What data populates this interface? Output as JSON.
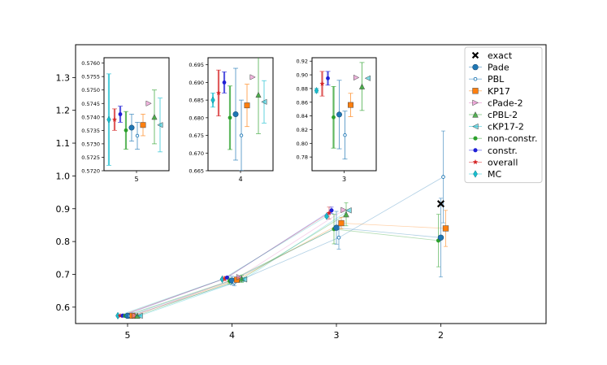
{
  "chart_data": {
    "type": "scatter",
    "title": "",
    "xlabel": "",
    "ylabel": "",
    "x_tick_labels": [
      "5",
      "4",
      "3",
      "2"
    ],
    "ylim": [
      0.55,
      1.4
    ],
    "y_ticks": [
      0.6,
      0.7,
      0.8,
      0.9,
      1.0,
      1.1,
      1.2,
      1.3
    ],
    "y_tick_labels": [
      "0.6",
      "0.7",
      "0.8",
      "0.9",
      "1.0",
      "1.1",
      "1.2",
      "1.3"
    ],
    "legend": {
      "placement": "upper-right",
      "entries": [
        {
          "label": "exact",
          "marker": "x",
          "color": "#000000"
        },
        {
          "label": "Pade",
          "marker": "circle",
          "color": "#1f77b4"
        },
        {
          "label": "PBL",
          "marker": "small-circle",
          "color": "#1f77b4"
        },
        {
          "label": "KP17",
          "marker": "square",
          "color": "#ff7f0e"
        },
        {
          "label": "cPade-2",
          "marker": "triangle-right",
          "color": "#e377c2"
        },
        {
          "label": "cPBL-2",
          "marker": "triangle-up",
          "color": "#2ca02c"
        },
        {
          "label": "cKP17-2",
          "marker": "triangle-left",
          "color": "#17becf"
        },
        {
          "label": "non-constr.",
          "marker": "dot",
          "color": "#2ca02c"
        },
        {
          "label": "constr.",
          "marker": "dot",
          "color": "#1f1fd6"
        },
        {
          "label": "overall",
          "marker": "star",
          "color": "#d62728"
        },
        {
          "label": "MC",
          "marker": "diamond",
          "color": "#17becf"
        }
      ]
    },
    "series": [
      {
        "name": "exact",
        "points": [
          {
            "x": "2",
            "y": 0.915
          }
        ]
      },
      {
        "name": "Pade",
        "points": [
          {
            "x": "5",
            "y": 0.5736,
            "err": 0.0005
          },
          {
            "x": "4",
            "y": 0.681,
            "err": 0.013
          },
          {
            "x": "3",
            "y": 0.842,
            "err": 0.05
          },
          {
            "x": "2",
            "y": 0.812,
            "err": 0.12
          }
        ]
      },
      {
        "name": "PBL",
        "points": [
          {
            "x": "5",
            "y": 0.5733,
            "err": 0.0005
          },
          {
            "x": "4",
            "y": 0.675,
            "err": 0.01
          },
          {
            "x": "3",
            "y": 0.812,
            "err": 0.035
          },
          {
            "x": "2",
            "y": 0.997,
            "err": 0.14
          }
        ]
      },
      {
        "name": "KP17",
        "points": [
          {
            "x": "5",
            "y": 0.5737,
            "err": 0.0004
          },
          {
            "x": "4",
            "y": 0.6835,
            "err": 0.006
          },
          {
            "x": "3",
            "y": 0.856,
            "err": 0.017
          },
          {
            "x": "2",
            "y": 0.84,
            "err": 0.055
          }
        ]
      },
      {
        "name": "cPade-2",
        "points": [
          {
            "x": "5",
            "y": 0.5745
          },
          {
            "x": "4",
            "y": 0.6915
          },
          {
            "x": "3",
            "y": 0.896
          }
        ]
      },
      {
        "name": "cPBL-2",
        "points": [
          {
            "x": "5",
            "y": 0.574,
            "err": 0.001
          },
          {
            "x": "4",
            "y": 0.6865,
            "err": 0.011
          },
          {
            "x": "3",
            "y": 0.883,
            "err": 0.035
          }
        ]
      },
      {
        "name": "cKP17-2",
        "points": [
          {
            "x": "5",
            "y": 0.5737,
            "err": 0.001
          },
          {
            "x": "4",
            "y": 0.6845,
            "err": 0.006
          },
          {
            "x": "3",
            "y": 0.895
          }
        ]
      },
      {
        "name": "non-constr.",
        "points": [
          {
            "x": "5",
            "y": 0.5735,
            "err": 0.0007
          },
          {
            "x": "4",
            "y": 0.68,
            "err": 0.009
          },
          {
            "x": "3",
            "y": 0.838,
            "err": 0.045
          },
          {
            "x": "2",
            "y": 0.803,
            "err": 0.08
          }
        ]
      },
      {
        "name": "constr.",
        "points": [
          {
            "x": "5",
            "y": 0.5741,
            "err": 0.0003
          },
          {
            "x": "4",
            "y": 0.69,
            "err": 0.003
          },
          {
            "x": "3",
            "y": 0.895,
            "err": 0.01
          }
        ]
      },
      {
        "name": "overall",
        "points": [
          {
            "x": "5",
            "y": 0.5739,
            "err": 0.0004
          },
          {
            "x": "4",
            "y": 0.687,
            "err": 0.0065
          },
          {
            "x": "3",
            "y": 0.887,
            "err": 0.018
          }
        ]
      },
      {
        "name": "MC",
        "points": [
          {
            "x": "5",
            "y": 0.5739,
            "err": 0.0017
          },
          {
            "x": "4",
            "y": 0.685,
            "err": 0.002
          },
          {
            "x": "3",
            "y": 0.877,
            "err": 0.003
          }
        ]
      }
    ],
    "insets": [
      {
        "label": "5",
        "ylim": [
          0.572,
          0.5762
        ],
        "y_ticks": [
          0.572,
          0.5725,
          0.573,
          0.5735,
          0.574,
          0.5745,
          0.575,
          0.5755,
          0.576
        ],
        "y_tick_labels": [
          "0.5720",
          "0.5725",
          "0.5730",
          "0.5735",
          "0.5740",
          "0.5745",
          "0.5750",
          "0.5755",
          "0.5760"
        ]
      },
      {
        "label": "4",
        "ylim": [
          0.665,
          0.697
        ],
        "y_ticks": [
          0.665,
          0.67,
          0.675,
          0.68,
          0.685,
          0.69,
          0.695
        ],
        "y_tick_labels": [
          "0.665",
          "0.670",
          "0.675",
          "0.680",
          "0.685",
          "0.690",
          "0.695"
        ]
      },
      {
        "label": "3",
        "ylim": [
          0.76,
          0.925
        ],
        "y_ticks": [
          0.78,
          0.8,
          0.82,
          0.84,
          0.86,
          0.88,
          0.9,
          0.92
        ],
        "y_tick_labels": [
          "0.78",
          "0.80",
          "0.82",
          "0.84",
          "0.86",
          "0.88",
          "0.90",
          "0.92"
        ]
      }
    ]
  }
}
